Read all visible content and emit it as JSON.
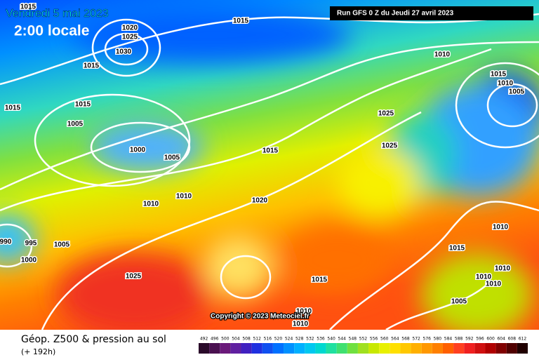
{
  "header": {
    "date": "Vendredi 5 mai 2023",
    "time": "2:00 locale",
    "run": "Run GFS 0 Z du Jeudi 27 avril 2023"
  },
  "copyright": "Copyright © 2023 Meteociel.fr",
  "footer": {
    "title": "Géop. Z500 & pression au sol",
    "lead": "(+ 192h)"
  },
  "isobar_labels": [
    "1015",
    "1020",
    "1025",
    "1030",
    "1015",
    "1015",
    "1015",
    "1005",
    "1000",
    "1005",
    "1015",
    "1010",
    "1015",
    "1010",
    "1005",
    "1025",
    "1025",
    "1015",
    "1010",
    "1010",
    "1020",
    "990",
    "995",
    "1005",
    "1000",
    "1025",
    "1010",
    "1015",
    "1010",
    "1010",
    "1010",
    "1015",
    "1005",
    "1010",
    "1010"
  ],
  "scale": {
    "labels": [
      "492",
      "496",
      "500",
      "504",
      "508",
      "512",
      "516",
      "520",
      "524",
      "528",
      "532",
      "536",
      "540",
      "544",
      "548",
      "552",
      "556",
      "560",
      "564",
      "568",
      "572",
      "576",
      "580",
      "584",
      "588",
      "592",
      "596",
      "600",
      "604",
      "608",
      "612"
    ],
    "colors": [
      "#2a0a2a",
      "#4a1050",
      "#6a1a7a",
      "#6020a0",
      "#4020c0",
      "#2030e0",
      "#1050f0",
      "#0070ff",
      "#0090ff",
      "#00b0ff",
      "#00c8f0",
      "#00d8d0",
      "#20e0a0",
      "#40e070",
      "#70e040",
      "#a0e020",
      "#c8e800",
      "#e8f000",
      "#ffe000",
      "#ffc800",
      "#ffb000",
      "#ff9800",
      "#ff8000",
      "#ff6000",
      "#ff4020",
      "#f02020",
      "#d01010",
      "#b00000",
      "#800000",
      "#500000",
      "#200000"
    ]
  }
}
